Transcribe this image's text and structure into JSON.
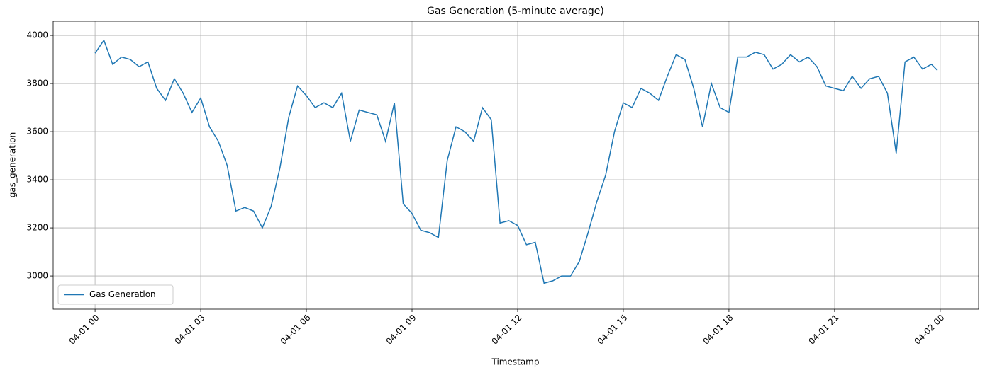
{
  "chart_data": {
    "type": "line",
    "title": "Gas Generation (5-minute average)",
    "x_label": "Timestamp",
    "y_label": "gas_generation",
    "x": [
      0,
      0.25,
      0.5,
      0.75,
      1,
      1.25,
      1.5,
      1.75,
      2,
      2.25,
      2.5,
      2.75,
      3,
      3.25,
      3.5,
      3.75,
      4,
      4.25,
      4.5,
      4.75,
      5,
      5.25,
      5.5,
      5.75,
      6,
      6.25,
      6.5,
      6.75,
      7,
      7.25,
      7.5,
      7.75,
      8,
      8.25,
      8.5,
      8.75,
      9,
      9.25,
      9.5,
      9.75,
      10,
      10.25,
      10.5,
      10.75,
      11,
      11.25,
      11.5,
      11.75,
      12,
      12.25,
      12.5,
      12.75,
      13,
      13.25,
      13.5,
      13.75,
      14,
      14.25,
      14.5,
      14.75,
      15,
      15.25,
      15.5,
      15.75,
      16,
      16.25,
      16.5,
      16.75,
      17,
      17.25,
      17.5,
      17.75,
      18,
      18.25,
      18.5,
      18.75,
      19,
      19.25,
      19.5,
      19.75,
      20,
      20.25,
      20.5,
      20.75,
      21,
      21.25,
      21.5,
      21.75,
      22,
      22.25,
      22.5,
      22.75,
      23,
      23.25,
      23.5,
      23.75,
      23.92
    ],
    "series": [
      {
        "name": "Gas Generation",
        "color": "#1f77b4",
        "values": [
          3926,
          3980,
          3880,
          3910,
          3900,
          3870,
          3890,
          3780,
          3730,
          3820,
          3760,
          3680,
          3740,
          3620,
          3560,
          3460,
          3270,
          3285,
          3270,
          3200,
          3290,
          3450,
          3660,
          3790,
          3750,
          3700,
          3720,
          3700,
          3760,
          3560,
          3690,
          3680,
          3670,
          3560,
          3720,
          3300,
          3260,
          3190,
          3180,
          3160,
          3480,
          3620,
          3600,
          3560,
          3700,
          3650,
          3220,
          3230,
          3210,
          3130,
          3140,
          2970,
          2980,
          3000,
          3000,
          3060,
          3180,
          3310,
          3420,
          3600,
          3720,
          3700,
          3780,
          3760,
          3730,
          3830,
          3920,
          3900,
          3780,
          3620,
          3800,
          3700,
          3680,
          3910,
          3910,
          3930,
          3920,
          3860,
          3880,
          3920,
          3890,
          3910,
          3870,
          3790,
          3780,
          3770,
          3830,
          3780,
          3820,
          3830,
          3760,
          3510,
          3890,
          3910,
          3860,
          3880,
          3855
        ]
      }
    ],
    "xlim": [
      -1.19,
      25.09
    ],
    "ylim": [
      2862,
      4059
    ],
    "xticks": [
      {
        "value": 0,
        "label": "04-01 00"
      },
      {
        "value": 3,
        "label": "04-01 03"
      },
      {
        "value": 6,
        "label": "04-01 06"
      },
      {
        "value": 9,
        "label": "04-01 09"
      },
      {
        "value": 12,
        "label": "04-01 12"
      },
      {
        "value": 15,
        "label": "04-01 15"
      },
      {
        "value": 18,
        "label": "04-01 18"
      },
      {
        "value": 21,
        "label": "04-01 21"
      },
      {
        "value": 24,
        "label": "04-02 00"
      }
    ],
    "yticks": [
      3000,
      3200,
      3400,
      3600,
      3800,
      4000
    ],
    "grid": true,
    "legend": "lower left"
  }
}
